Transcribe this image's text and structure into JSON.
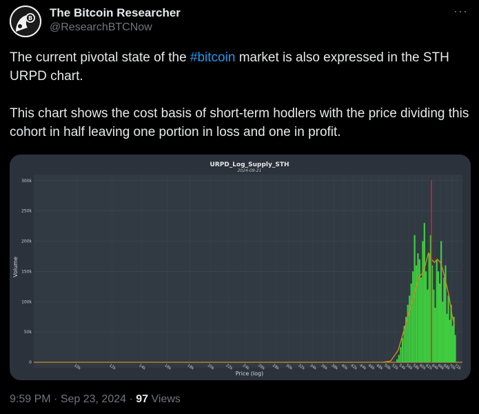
{
  "post": {
    "author_name": "The Bitcoin Researcher",
    "author_handle": "@ResearchBTCNow",
    "more_icon": "more-horizontal-icon",
    "paragraph1_before": "The current pivotal state of the ",
    "hashtag": "#bitcoin",
    "paragraph1_after": " market is also expressed in the STH URPD chart.",
    "paragraph2": "This chart shows the cost basis of short-term hodlers with the price dividing this cohort in half leaving one portion in loss and one in profit.",
    "time": "9:59 PM",
    "date": "Sep 23, 2024",
    "views_count": "97",
    "views_label": "Views"
  },
  "chart_data": {
    "type": "bar",
    "title": "URPD_Log_Supply_STH",
    "subtitle": "2024-09-21",
    "xlabel": "Price (log)",
    "ylabel": "Volume",
    "ylim": [
      0,
      310000
    ],
    "yticks": [
      "0",
      "50k",
      "100k",
      "150k",
      "200k",
      "250k",
      "300k"
    ],
    "xticks": [
      "10k",
      "12k",
      "14k",
      "16k",
      "18k",
      "20k",
      "22k",
      "24k",
      "26k",
      "28k",
      "30k",
      "32k",
      "34k",
      "36k",
      "38k",
      "40k",
      "42k",
      "44k",
      "46k",
      "48k",
      "50k",
      "52k",
      "54k",
      "56k",
      "58k",
      "60k",
      "62k",
      "64k",
      "66k",
      "68k",
      "70k",
      "72k"
    ],
    "bar_color": "#3fcc3f",
    "trend_color": "#d08a1e",
    "current_price_color": "#d62728",
    "current_price_marker": 63000,
    "categories": [
      "52.5k",
      "53k",
      "53.5k",
      "54k",
      "54.5k",
      "55k",
      "55.5k",
      "56k",
      "56.5k",
      "57k",
      "57.5k",
      "58k",
      "58.5k",
      "59k",
      "59.5k",
      "60k",
      "60.5k",
      "61k",
      "61.5k",
      "62k",
      "62.5k",
      "63k",
      "63.5k",
      "64k",
      "64.5k",
      "65k",
      "65.5k",
      "66k",
      "66.5k",
      "67k",
      "67.5k",
      "68k",
      "68.5k",
      "69k",
      "69.5k",
      "70k",
      "70.5k",
      "71k"
    ],
    "values": [
      5000,
      12000,
      25000,
      40000,
      60000,
      75000,
      95000,
      110000,
      130000,
      150000,
      210000,
      160000,
      180000,
      170000,
      140000,
      200000,
      230000,
      150000,
      120000,
      180000,
      210000,
      160000,
      120000,
      90000,
      170000,
      150000,
      130000,
      200000,
      100000,
      140000,
      160000,
      80000,
      110000,
      70000,
      95000,
      60000,
      75000,
      45000
    ],
    "trend_x": [
      "49k",
      "51k",
      "53k",
      "55k",
      "57k",
      "59k",
      "60.5k",
      "62k",
      "63k",
      "64k",
      "65k",
      "66k",
      "67k",
      "68k",
      "69k",
      "70k",
      "71k"
    ],
    "trend_y": [
      0,
      2000,
      20000,
      60000,
      100000,
      140000,
      150000,
      180000,
      170000,
      165000,
      170000,
      165000,
      150000,
      130000,
      110000,
      80000,
      60000
    ]
  }
}
